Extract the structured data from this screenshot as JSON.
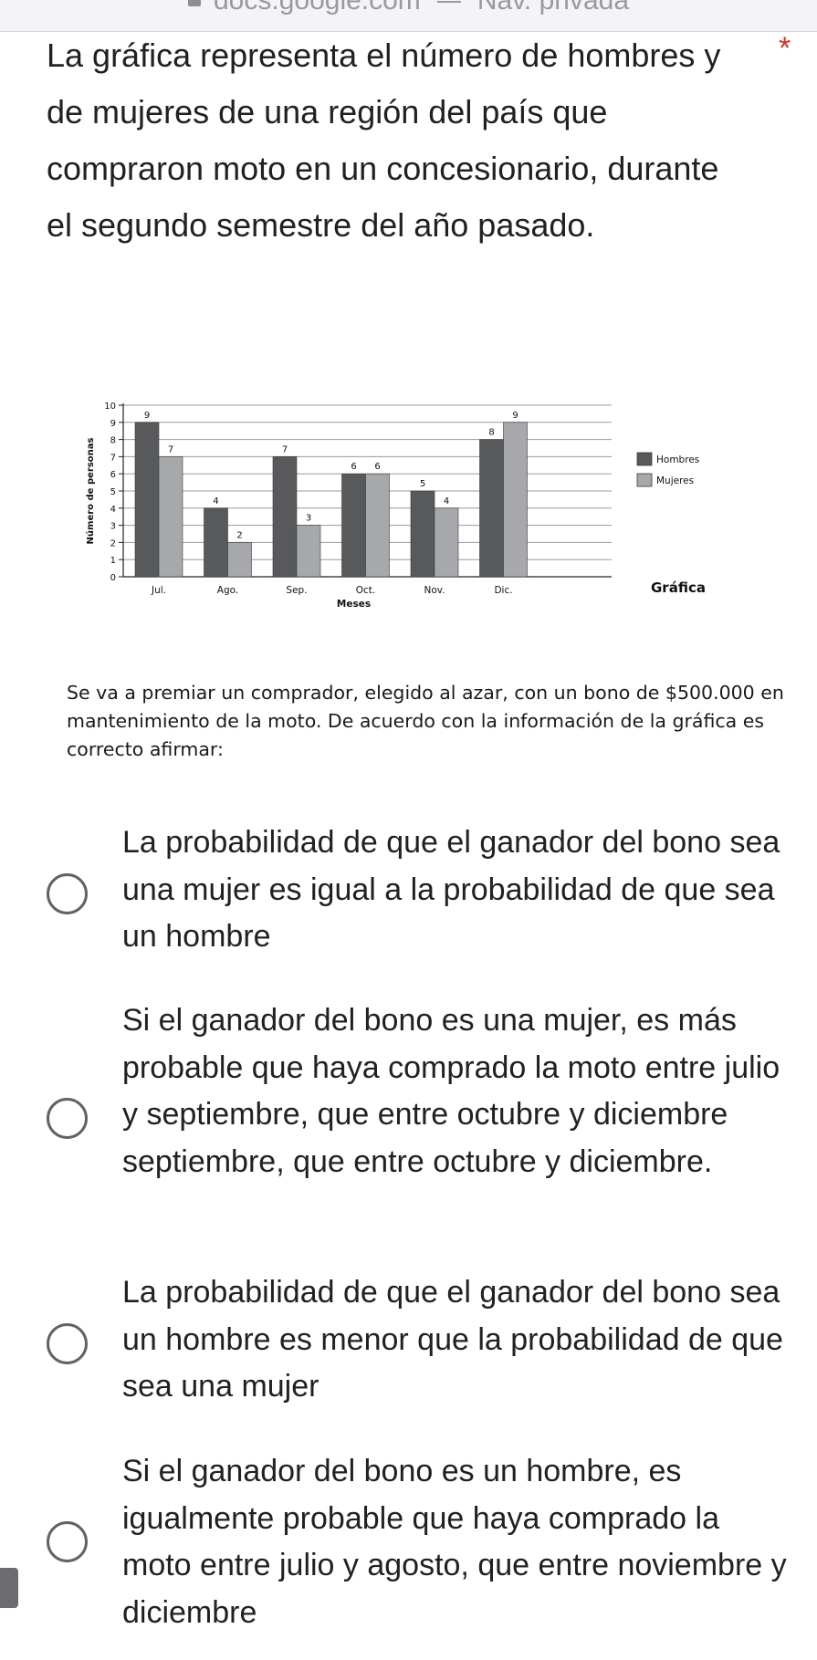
{
  "browser": {
    "url": "docs.google.com",
    "mode": "Nav. privada"
  },
  "question": {
    "title": "La gráfica representa el número de hombres y de mujeres de una región del país que compraron moto en un concesionario, durante el segundo semestre del año pasado.",
    "required_mark": "*",
    "premise": "Se va a premiar un comprador, elegido al azar, con un bono de $500.000 en mantenimiento de la moto. De acuerdo con la información de la gráfica es correcto afirmar:"
  },
  "chart_data": {
    "type": "bar",
    "title": "",
    "caption": "Gráfica",
    "xlabel": "Meses",
    "ylabel": "Número de personas",
    "categories": [
      "Jul.",
      "Ago.",
      "Sep.",
      "Oct.",
      "Nov.",
      "Dic."
    ],
    "series": [
      {
        "name": "Hombres",
        "color": "#58595b",
        "values": [
          9,
          4,
          7,
          6,
          5,
          8
        ]
      },
      {
        "name": "Mujeres",
        "color": "#a6a8ab",
        "values": [
          7,
          2,
          3,
          6,
          4,
          9
        ]
      }
    ],
    "ylim": [
      0,
      10
    ],
    "yticks": [
      0,
      1,
      2,
      3,
      4,
      5,
      6,
      7,
      8,
      9,
      10
    ],
    "grid": true,
    "legend_position": "right"
  },
  "options": [
    {
      "label": "La probabilidad de que el ganador del bono sea una mujer es igual a la probabilidad de que sea un hombre"
    },
    {
      "label": "Si el ganador del bono es una mujer, es más probable que haya comprado la moto entre julio y septiembre, que entre octubre y diciembre septiembre, que entre octubre y diciembre."
    },
    {
      "label": "La probabilidad de que el ganador del bono sea un hombre es menor que la probabilidad de que sea una mujer"
    },
    {
      "label": "Si el ganador del bono es un hombre, es igualmente probable que haya comprado la moto entre julio y agosto, que entre noviembre y diciembre"
    }
  ]
}
